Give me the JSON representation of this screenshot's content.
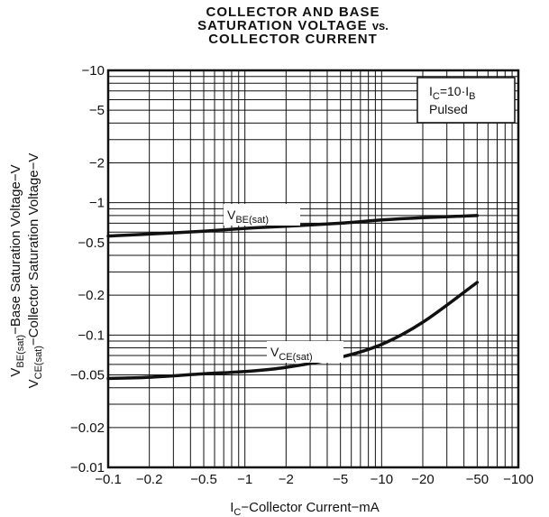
{
  "chart_data": {
    "type": "line",
    "title_lines": [
      "COLLECTOR AND BASE",
      "SATURATION VOLTAGE",
      "COLLECTOR CURRENT"
    ],
    "title_vs": "vs.",
    "x_axis": {
      "label_main": "I",
      "label_sub": "C",
      "label_rest": "−Collector Current−mA",
      "scale": "log",
      "range": [
        -0.1,
        -100
      ],
      "ticks": [
        {
          "value": -0.1,
          "label": "−0.1"
        },
        {
          "value": -0.2,
          "label": "−0.2"
        },
        {
          "value": -0.5,
          "label": "−0.5"
        },
        {
          "value": -1,
          "label": "−1"
        },
        {
          "value": -2,
          "label": "−2"
        },
        {
          "value": -5,
          "label": "−5"
        },
        {
          "value": -10,
          "label": "−10"
        },
        {
          "value": -20,
          "label": "−20"
        },
        {
          "value": -50,
          "label": "−50"
        },
        {
          "value": -100,
          "label": "−100"
        }
      ]
    },
    "y_axis": {
      "label_line1_main": "V",
      "label_line1_sub": "BE(sat)",
      "label_line1_rest": "−Base Saturation Voltage−V",
      "label_line2_main": "V",
      "label_line2_sub": "CE(sat)",
      "label_line2_rest": "−Collector Saturation Voltage−V",
      "scale": "log",
      "range": [
        -0.01,
        -10
      ],
      "ticks": [
        {
          "value": -10,
          "label": "−10"
        },
        {
          "value": -5,
          "label": "−5"
        },
        {
          "value": -2,
          "label": "−2"
        },
        {
          "value": -1,
          "label": "−1"
        },
        {
          "value": -0.5,
          "label": "−0.5"
        },
        {
          "value": -0.2,
          "label": "−0.2"
        },
        {
          "value": -0.1,
          "label": "−0.1"
        },
        {
          "value": -0.05,
          "label": "−0.05"
        },
        {
          "value": -0.02,
          "label": "−0.02"
        },
        {
          "value": -0.01,
          "label": "−0.01"
        }
      ]
    },
    "grid": true,
    "annotation": {
      "line1_main": "I",
      "line1_sub": "C",
      "line1_mid": "=10·I",
      "line1_sub2": "B",
      "line2": "Pulsed"
    },
    "series": [
      {
        "name_main": "V",
        "name_sub": "BE(sat)",
        "points": [
          [
            -0.1,
            -0.56
          ],
          [
            -0.2,
            -0.58
          ],
          [
            -0.5,
            -0.61
          ],
          [
            -1,
            -0.64
          ],
          [
            -2,
            -0.665
          ],
          [
            -5,
            -0.7
          ],
          [
            -10,
            -0.74
          ],
          [
            -20,
            -0.77
          ],
          [
            -50,
            -0.8
          ]
        ]
      },
      {
        "name_main": "V",
        "name_sub": "CE(sat)",
        "points": [
          [
            -0.1,
            -0.047
          ],
          [
            -0.2,
            -0.048
          ],
          [
            -0.5,
            -0.051
          ],
          [
            -1,
            -0.053
          ],
          [
            -2,
            -0.057
          ],
          [
            -5,
            -0.068
          ],
          [
            -10,
            -0.085
          ],
          [
            -20,
            -0.125
          ],
          [
            -50,
            -0.25
          ]
        ]
      }
    ]
  }
}
